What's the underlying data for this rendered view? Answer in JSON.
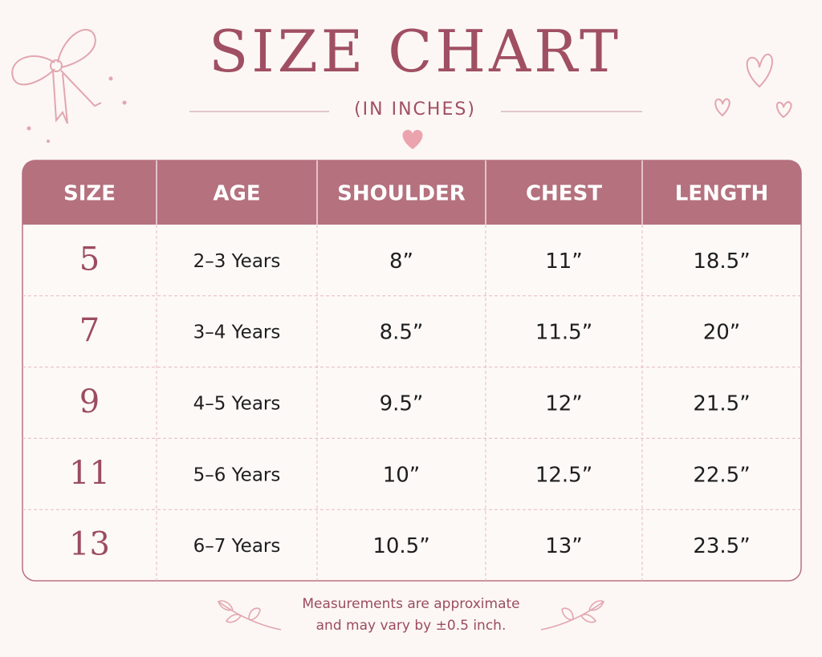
{
  "title": "SIZE CHART",
  "subtitle": "(IN INCHES)",
  "table": {
    "header": [
      "SIZE",
      "AGE",
      "SHOULDER",
      "CHEST",
      "LENGTH"
    ],
    "rows": [
      [
        "5",
        "2–3 Years",
        "8”",
        "11”",
        "18.5”"
      ],
      [
        "7",
        "3–4 Years",
        "8.5”",
        "11.5”",
        "20”"
      ],
      [
        "9",
        "4–5 Years",
        "9.5”",
        "12”",
        "21.5”"
      ],
      [
        "11",
        "5–6 Years",
        "10”",
        "12.5”",
        "22.5”"
      ],
      [
        "13",
        "6–7 Years",
        "10.5”",
        "13”",
        "23.5”"
      ]
    ]
  },
  "footnote": [
    "Measurements are approximate",
    "and may vary by ±0.5 inch."
  ]
}
